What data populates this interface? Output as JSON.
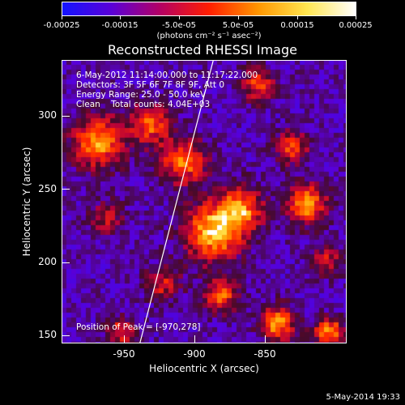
{
  "colorbar": {
    "ticks": [
      "-0.00025",
      "-0.00015",
      "-5.0e-05",
      "5.0e-05",
      "0.00015",
      "0.00025"
    ],
    "units": "(photons cm⁻² s⁻¹ asec⁻²)",
    "colors": [
      "#1414ff",
      "#5a00d8",
      "#b40064",
      "#ff1e00",
      "#ff9600",
      "#ffe650",
      "#ffffff"
    ]
  },
  "title": "Reconstructed RHESSI Image",
  "info": {
    "time": "6-May-2012 11:14:00.000 to 11:17:22.000",
    "detectors": "Detectors: 3F 5F 6F 7F 8F 9F, Att 0",
    "energy": "Energy Range: 25.0 - 50.0 keV",
    "clean": "Clean    Total counts: 4.04E+03"
  },
  "peak": "Position of Peak = [-970,278]",
  "axes": {
    "xlabel": "Heliocentric X (arcsec)",
    "ylabel": "Heliocentric Y (arcsec)",
    "xticks": [
      "-950",
      "-900",
      "-850"
    ],
    "yticks": [
      "300",
      "250",
      "200",
      "150"
    ]
  },
  "timestamp": "5-May-2014 19:33"
}
